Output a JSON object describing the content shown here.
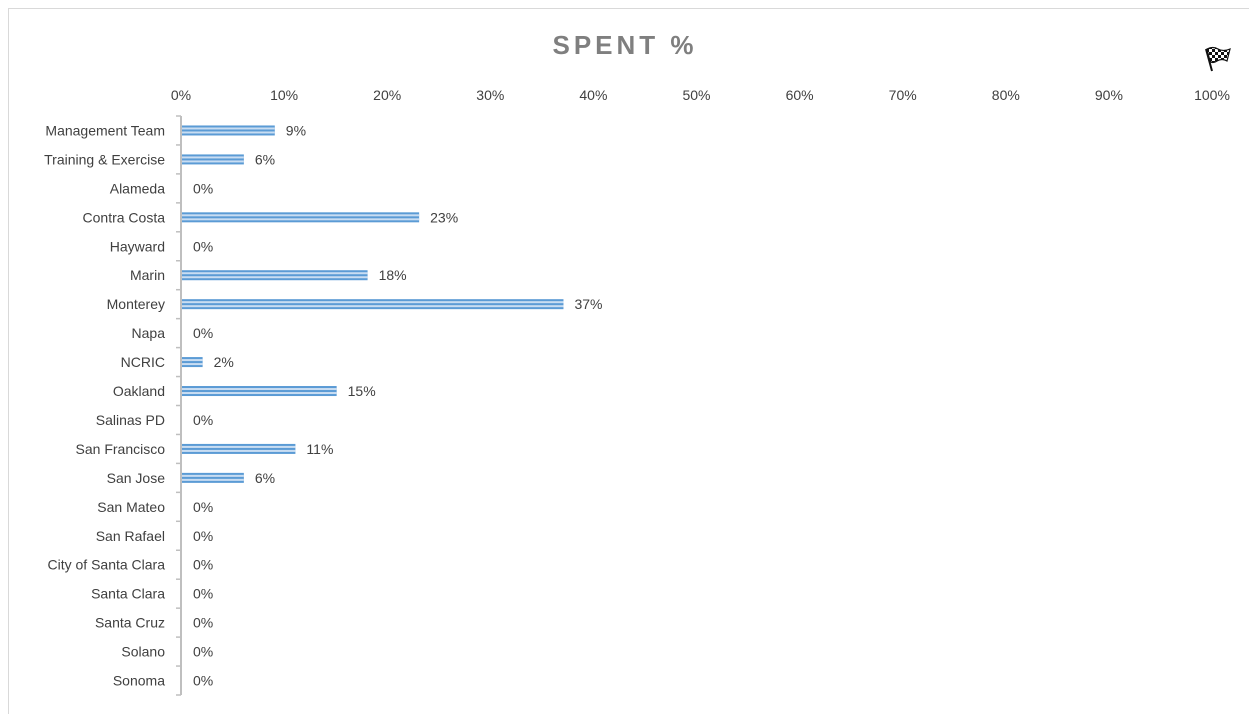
{
  "chart_data": {
    "type": "bar",
    "orientation": "horizontal",
    "title": "SPENT %",
    "categories": [
      "Management Team",
      "Training & Exercise",
      "Alameda",
      "Contra Costa",
      "Hayward",
      "Marin",
      "Monterey",
      "Napa",
      "NCRIC",
      "Oakland",
      "Salinas PD",
      "San Francisco",
      "San Jose",
      "San Mateo",
      "San Rafael",
      "City of Santa Clara",
      "Santa Clara",
      "Santa Cruz",
      "Solano",
      "Sonoma"
    ],
    "values": [
      9,
      6,
      0,
      23,
      0,
      18,
      37,
      0,
      2,
      15,
      0,
      11,
      6,
      0,
      0,
      0,
      0,
      0,
      0,
      0
    ],
    "data_labels": [
      "9%",
      "6%",
      "0%",
      "23%",
      "0%",
      "18%",
      "37%",
      "0%",
      "2%",
      "15%",
      "0%",
      "11%",
      "6%",
      "0%",
      "0%",
      "0%",
      "0%",
      "0%",
      "0%",
      "0%"
    ],
    "xlim": [
      0,
      100
    ],
    "x_ticks": [
      "0%",
      "10%",
      "20%",
      "30%",
      "40%",
      "50%",
      "60%",
      "70%",
      "80%",
      "90%",
      "100%"
    ],
    "x_axis_position": "top",
    "grid": false,
    "legend": "none",
    "bar_color": "#5b9bd5",
    "bar_stripe_color": "#c9ddf2",
    "axis_color": "#bfbfbf",
    "text_color": "#404040",
    "title_color": "#7f7f7f"
  },
  "decorations": {
    "corner_icon": "checkered-flag-icon"
  }
}
